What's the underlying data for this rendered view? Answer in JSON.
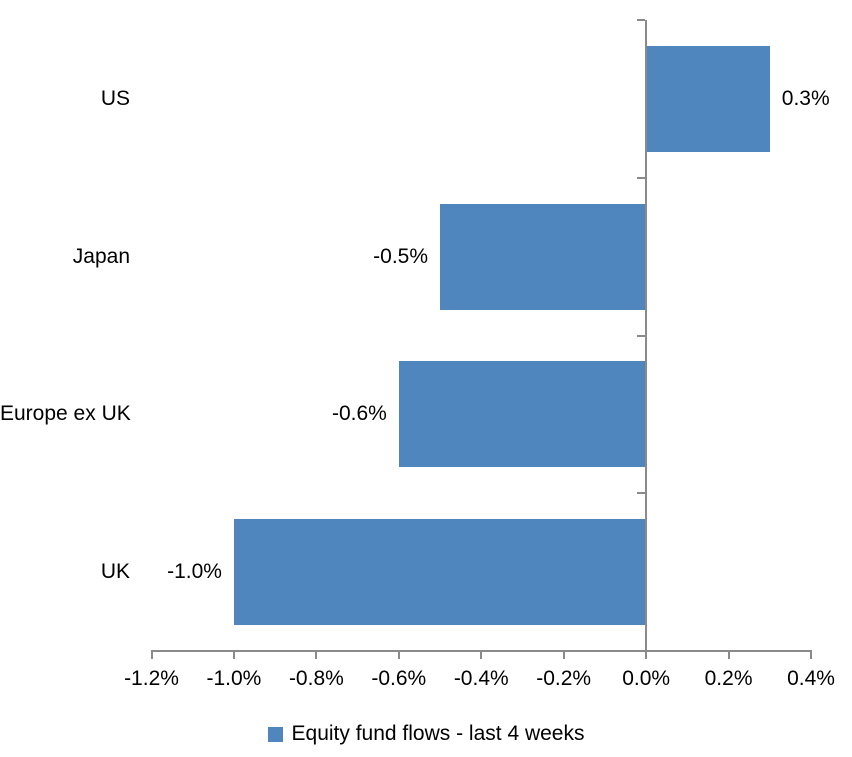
{
  "chart_data": {
    "type": "bar",
    "orientation": "horizontal",
    "categories": [
      "US",
      "Japan",
      "Europe ex UK",
      "UK"
    ],
    "values": [
      0.3,
      -0.5,
      -0.6,
      -1.0
    ],
    "data_labels": [
      "0.3%",
      "-0.5%",
      "-0.6%",
      "-1.0%"
    ],
    "x_tick_labels": [
      "-1.2%",
      "-1.0%",
      "-0.8%",
      "-0.6%",
      "-0.4%",
      "-0.2%",
      "0.0%",
      "0.2%",
      "0.4%"
    ],
    "x_tick_values": [
      -1.2,
      -1.0,
      -0.8,
      -0.6,
      -0.4,
      -0.2,
      0.0,
      0.2,
      0.4
    ],
    "xlim": [
      -1.2,
      0.4
    ],
    "grid": false,
    "legend_position": "bottom",
    "legend_label": "Equity fund flows - last 4 weeks",
    "colors": {
      "bar": "#4E86BD",
      "axis": "#8a8a8a",
      "text": "#000000",
      "background": "#FFFFFF"
    }
  }
}
